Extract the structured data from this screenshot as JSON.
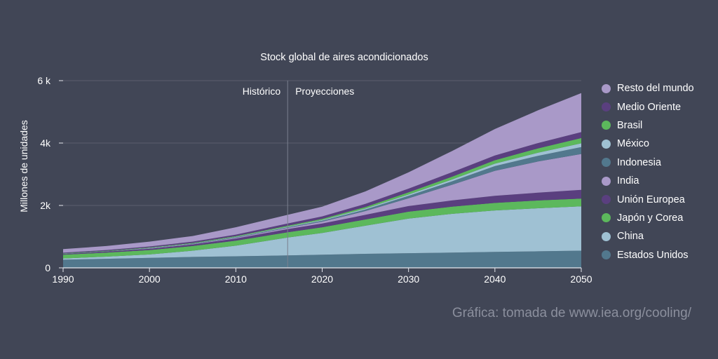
{
  "chart_data": {
    "type": "area",
    "stacked": true,
    "title": "Stock global de aires acondicionados",
    "xlabel": "",
    "ylabel": "Millones de unidades",
    "x": [
      1990,
      1995,
      2000,
      2005,
      2010,
      2016,
      2020,
      2025,
      2030,
      2035,
      2040,
      2045,
      2050
    ],
    "xticks": [
      "1990",
      "2000",
      "2010",
      "2020",
      "2030",
      "2040",
      "2050"
    ],
    "yticks": [
      "0",
      "2k",
      "4k",
      "6 k"
    ],
    "xlim": [
      1990,
      2050
    ],
    "ylim": [
      0,
      6000
    ],
    "grid": "horizontal",
    "legend_position": "right",
    "annotations": {
      "divider_year": 2016,
      "left_label": "Histórico",
      "right_label": "Proyecciones"
    },
    "series": [
      {
        "name": "Estados Unidos",
        "color": "#52788d",
        "values": [
          260,
          290,
          320,
          350,
          370,
          400,
          420,
          450,
          470,
          490,
          510,
          530,
          550
        ]
      },
      {
        "name": "China",
        "color": "#9fc1d3",
        "values": [
          40,
          70,
          110,
          200,
          340,
          570,
          700,
          900,
          1110,
          1240,
          1330,
          1380,
          1420
        ]
      },
      {
        "name": "Japón y Corea",
        "color": "#5cb85c",
        "values": [
          120,
          130,
          140,
          150,
          160,
          170,
          180,
          200,
          220,
          230,
          240,
          250,
          250
        ]
      },
      {
        "name": "Unión Europea",
        "color": "#5a3f7f",
        "values": [
          20,
          30,
          40,
          50,
          70,
          100,
          120,
          150,
          180,
          200,
          230,
          250,
          280
        ]
      },
      {
        "name": "India",
        "color": "#a999c8",
        "values": [
          5,
          5,
          10,
          15,
          25,
          40,
          60,
          120,
          250,
          500,
          800,
          1000,
          1150
        ]
      },
      {
        "name": "Indonesia",
        "color": "#52788d",
        "values": [
          5,
          5,
          10,
          10,
          15,
          20,
          30,
          50,
          80,
          110,
          150,
          180,
          220
        ]
      },
      {
        "name": "México",
        "color": "#9fc1d3",
        "values": [
          5,
          5,
          10,
          10,
          15,
          20,
          25,
          30,
          40,
          60,
          80,
          100,
          120
        ]
      },
      {
        "name": "Brasil",
        "color": "#5cb85c",
        "values": [
          10,
          10,
          15,
          15,
          20,
          30,
          35,
          50,
          70,
          90,
          110,
          140,
          170
        ]
      },
      {
        "name": "Medio Oriente",
        "color": "#5a3f7f",
        "values": [
          20,
          25,
          30,
          40,
          50,
          70,
          80,
          100,
          120,
          140,
          150,
          170,
          190
        ]
      },
      {
        "name": "Resto del mundo",
        "color": "#a999c8",
        "values": [
          115,
          130,
          155,
          180,
          235,
          280,
          310,
          400,
          520,
          680,
          850,
          1050,
          1250
        ]
      }
    ],
    "legend_order": [
      "Resto del mundo",
      "Medio Oriente",
      "Brasil",
      "México",
      "Indonesia",
      "India",
      "Unión Europea",
      "Japón y Corea",
      "China",
      "Estados Unidos"
    ]
  },
  "credit": "Gráfica: tomada de www.iea.org/cooling/"
}
